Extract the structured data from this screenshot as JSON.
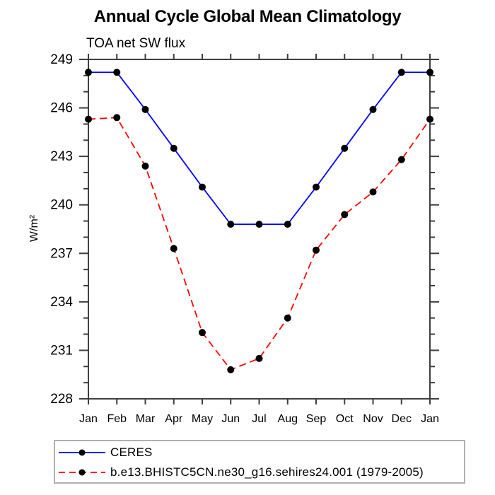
{
  "chart_data": {
    "type": "line",
    "title": "Annual Cycle Global Mean Climatology",
    "subtitle": "TOA net SW flux",
    "ylabel": "W/m²",
    "xlabel": "",
    "categories": [
      "Jan",
      "Feb",
      "Mar",
      "Apr",
      "May",
      "Jun",
      "Jul",
      "Aug",
      "Sep",
      "Oct",
      "Nov",
      "Dec",
      "Jan"
    ],
    "ylim": [
      228,
      249
    ],
    "yticks": [
      228,
      231,
      234,
      237,
      240,
      243,
      246,
      249
    ],
    "ytick_minor_step": 1,
    "grid": false,
    "axis_color": "#3f3f3f",
    "marker": {
      "shape": "circle",
      "color": "#000000",
      "radius": 5
    },
    "legend_position": "bottom-left-box",
    "legend_border_color": "#b0b0b0",
    "series": [
      {
        "name": "CERES",
        "color": "#0000ff",
        "style": "solid",
        "values": [
          248.2,
          248.2,
          245.9,
          243.5,
          241.1,
          238.8,
          238.8,
          238.8,
          241.1,
          243.5,
          245.9,
          248.2,
          248.2
        ]
      },
      {
        "name": "b.e13.BHISTC5CN.ne30_g16.sehires24.001 (1979-2005)",
        "color": "#ff0000",
        "style": "dashed",
        "values": [
          245.3,
          245.4,
          242.4,
          237.3,
          232.1,
          229.8,
          230.5,
          233.0,
          237.2,
          239.4,
          240.8,
          242.8,
          245.3
        ]
      }
    ]
  }
}
